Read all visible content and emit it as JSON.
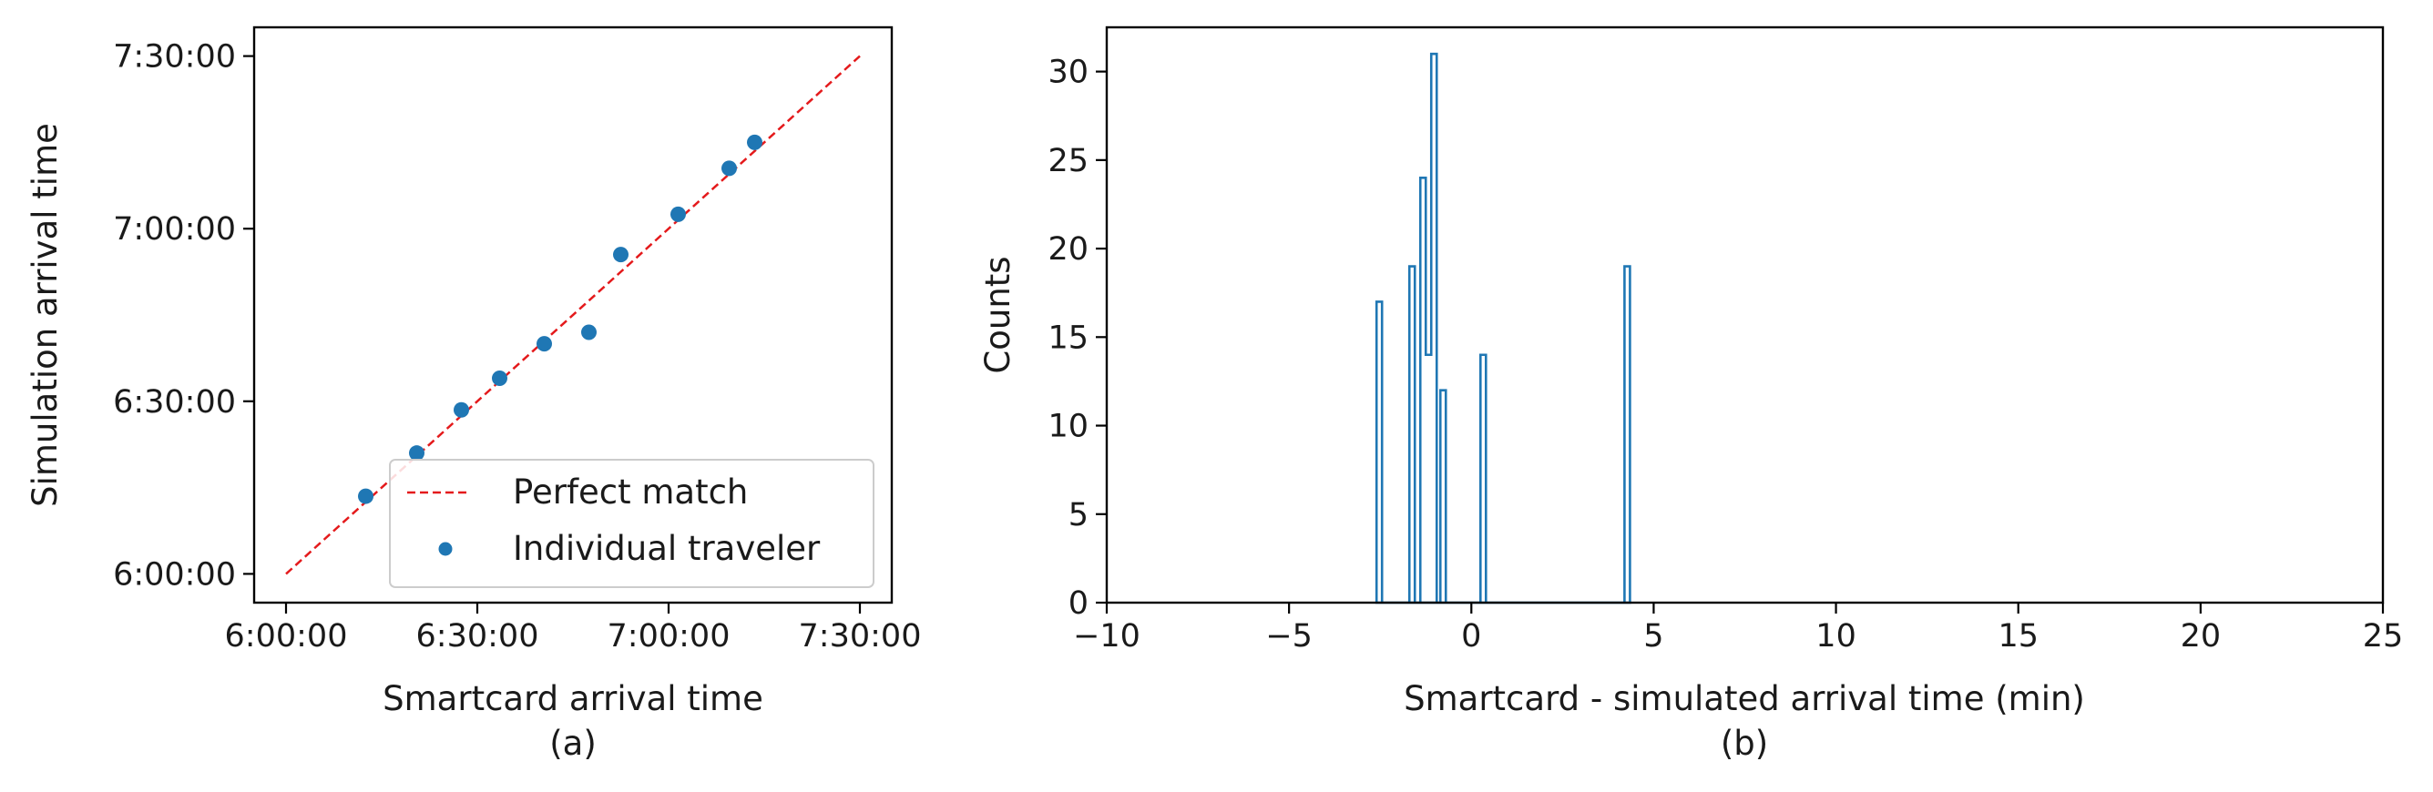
{
  "colors": {
    "series": "#1f77b4",
    "reference_line": "#e41a1c",
    "axes": "#000000",
    "background": "#ffffff"
  },
  "chart_data": [
    {
      "type": "scatter",
      "panel_label": "(a)",
      "xlabel": "Smartcard arrival time",
      "ylabel": "Simulation arrival time",
      "x_range": [
        "5:55:00",
        "7:35:00"
      ],
      "y_range": [
        "5:55:00",
        "7:35:00"
      ],
      "xticks": [
        "6:00:00",
        "6:30:00",
        "7:00:00",
        "7:30:00"
      ],
      "yticks": [
        "6:00:00",
        "6:30:00",
        "7:00:00",
        "7:30:00"
      ],
      "grid": false,
      "legend_position": "lower-right",
      "reference_line": {
        "name": "Perfect match",
        "style": "dashed",
        "from": [
          "6:00:00",
          "6:00:00"
        ],
        "to": [
          "7:30:00",
          "7:30:00"
        ]
      },
      "series": [
        {
          "name": "Individual traveler",
          "points": [
            [
              "6:12:30",
              "6:13:30"
            ],
            [
              "6:20:30",
              "6:21:00"
            ],
            [
              "6:27:30",
              "6:28:30"
            ],
            [
              "6:33:30",
              "6:34:00"
            ],
            [
              "6:40:30",
              "6:40:00"
            ],
            [
              "6:47:30",
              "6:42:00"
            ],
            [
              "6:52:30",
              "6:55:30"
            ],
            [
              "7:01:30",
              "7:02:30"
            ],
            [
              "7:09:30",
              "7:10:30"
            ],
            [
              "7:13:30",
              "7:15:00"
            ]
          ]
        }
      ]
    },
    {
      "type": "histogram",
      "panel_label": "(b)",
      "xlabel": "Smartcard - simulated arrival time (min)",
      "ylabel": "Counts",
      "xlim": [
        -10,
        25
      ],
      "ylim": [
        0,
        32.5
      ],
      "xticks": [
        "−10",
        "−5",
        "0",
        "5",
        "10",
        "15",
        "20",
        "25"
      ],
      "yticks": [
        "0",
        "5",
        "10",
        "15",
        "20",
        "25",
        "30"
      ],
      "grid": false,
      "histtype": "step",
      "bins": [
        {
          "x0": -2.6,
          "x1": -2.45,
          "count": 17
        },
        {
          "x0": -1.7,
          "x1": -1.55,
          "count": 19
        },
        {
          "x0": -1.4,
          "x1": -1.25,
          "count": 24
        },
        {
          "x0": -1.25,
          "x1": -1.1,
          "count": 14
        },
        {
          "x0": -1.1,
          "x1": -0.95,
          "count": 31
        },
        {
          "x0": -0.85,
          "x1": -0.7,
          "count": 12
        },
        {
          "x0": 0.25,
          "x1": 0.4,
          "count": 14
        },
        {
          "x0": 4.2,
          "x1": 4.35,
          "count": 19
        }
      ]
    }
  ]
}
